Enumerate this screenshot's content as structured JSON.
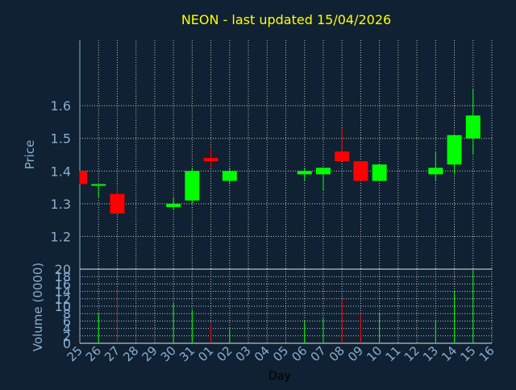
{
  "colors": {
    "background": "#0f2132",
    "title": "#ffff00",
    "axis_text": "#8aaed0",
    "grid": "#e6e6e6",
    "up": "#00ff00",
    "down": "#ff0000",
    "axis_line": "#8aaed0",
    "xlabel_text": "#000000"
  },
  "chart_data": {
    "type": "candlestick",
    "title": "NEON - last updated 15/04/2026",
    "xlabel": "Day",
    "ylabel": "Price",
    "volume_label": "Volume (0000)",
    "days": [
      "25",
      "26",
      "27",
      "28",
      "29",
      "30",
      "31",
      "01",
      "02",
      "03",
      "04",
      "05",
      "06",
      "07",
      "08",
      "09",
      "10",
      "11",
      "12",
      "13",
      "14",
      "15",
      "16"
    ],
    "price_ylim": [
      1.1,
      1.8
    ],
    "price_ticks": [
      "1.2",
      "1.3",
      "1.4",
      "1.5",
      "1.6"
    ],
    "volume_ylim": [
      0,
      20
    ],
    "volume_ticks": [
      "0",
      "2",
      "4",
      "6",
      "8",
      "10",
      "12",
      "14",
      "16",
      "18",
      "20"
    ],
    "grid": true,
    "candles": [
      {
        "day": "25",
        "open": 1.4,
        "high": 1.4,
        "low": 1.36,
        "close": 1.36,
        "volume": 0
      },
      {
        "day": "26",
        "open": 1.355,
        "high": 1.36,
        "low": 1.32,
        "close": 1.36,
        "volume": 8
      },
      {
        "day": "27",
        "open": 1.33,
        "high": 1.36,
        "low": 1.27,
        "close": 1.27,
        "volume": 15
      },
      {
        "day": "30",
        "open": 1.29,
        "high": 1.32,
        "low": 1.28,
        "close": 1.3,
        "volume": 11
      },
      {
        "day": "31",
        "open": 1.31,
        "high": 1.41,
        "low": 1.3,
        "close": 1.4,
        "volume": 9
      },
      {
        "day": "01",
        "open": 1.44,
        "high": 1.47,
        "low": 1.41,
        "close": 1.43,
        "volume": 5
      },
      {
        "day": "02",
        "open": 1.37,
        "high": 1.41,
        "low": 1.36,
        "close": 1.4,
        "volume": 4
      },
      {
        "day": "06",
        "open": 1.39,
        "high": 1.41,
        "low": 1.37,
        "close": 1.4,
        "volume": 6
      },
      {
        "day": "07",
        "open": 1.39,
        "high": 1.41,
        "low": 1.34,
        "close": 1.41,
        "volume": 7
      },
      {
        "day": "08",
        "open": 1.46,
        "high": 1.53,
        "low": 1.43,
        "close": 1.43,
        "volume": 12
      },
      {
        "day": "09",
        "open": 1.43,
        "high": 1.43,
        "low": 1.37,
        "close": 1.37,
        "volume": 8
      },
      {
        "day": "10",
        "open": 1.37,
        "high": 1.42,
        "low": 1.37,
        "close": 1.42,
        "volume": 8
      },
      {
        "day": "13",
        "open": 1.39,
        "high": 1.46,
        "low": 1.37,
        "close": 1.41,
        "volume": 6
      },
      {
        "day": "14",
        "open": 1.42,
        "high": 1.51,
        "low": 1.39,
        "close": 1.51,
        "volume": 14
      },
      {
        "day": "15",
        "open": 1.5,
        "high": 1.65,
        "low": 1.45,
        "close": 1.57,
        "volume": 20
      }
    ]
  }
}
